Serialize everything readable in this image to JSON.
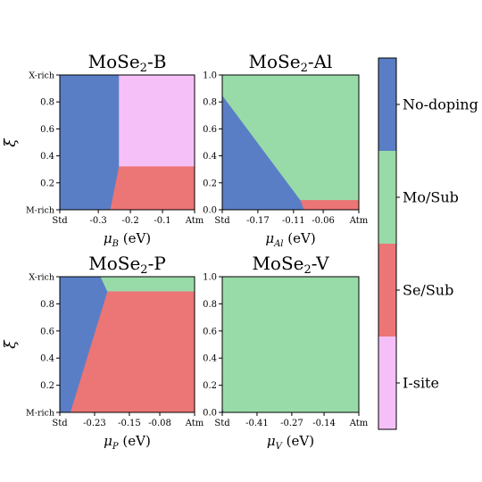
{
  "colors": {
    "No-doping": "#5A7EC5",
    "Mo/Sub": "#98DBA8",
    "Se/Sub": "#EC7575",
    "I-site": "#F5C0F7"
  },
  "colorbar": {
    "labels": [
      "No-doping",
      "Mo/Sub",
      "Se/Sub",
      "I-site"
    ]
  },
  "ylabel": "ξ",
  "chart_data": [
    {
      "type": "heatmap",
      "title": {
        "pre": "MoSe",
        "sub": "2",
        "post": "-B"
      },
      "xlabel": {
        "sym": "μ",
        "sub": "B",
        "unit": " (eV)"
      },
      "xlim": [
        -0.42,
        0.0
      ],
      "ylim": [
        0.0,
        1.0
      ],
      "xticks": [
        -0.42,
        -0.3,
        -0.2,
        -0.1,
        0.0
      ],
      "xtick_labels": [
        "Std",
        "-0.3",
        "-0.2",
        "-0.1",
        "Atm"
      ],
      "yticks": [
        0.0,
        0.2,
        0.4,
        0.6,
        0.8,
        1.0
      ],
      "ytick_labels": [
        "M-rich",
        "0.2",
        "0.4",
        "0.6",
        "0.8",
        "X-rich"
      ],
      "regions": [
        {
          "label": "No-doping",
          "polygon": [
            [
              -0.42,
              0.0
            ],
            [
              -0.262,
              0.0
            ],
            [
              -0.235,
              0.32
            ],
            [
              -0.235,
              1.0
            ],
            [
              -0.42,
              1.0
            ]
          ]
        },
        {
          "label": "I-site",
          "polygon": [
            [
              -0.235,
              0.32
            ],
            [
              0.0,
              0.32
            ],
            [
              0.0,
              1.0
            ],
            [
              -0.235,
              1.0
            ]
          ]
        },
        {
          "label": "Se/Sub",
          "polygon": [
            [
              -0.262,
              0.0
            ],
            [
              0.0,
              0.0
            ],
            [
              0.0,
              0.32
            ],
            [
              -0.235,
              0.32
            ]
          ]
        }
      ]
    },
    {
      "type": "heatmap",
      "title": {
        "pre": "MoSe",
        "sub": "2",
        "post": "-Al"
      },
      "xlabel": {
        "sym": "μ",
        "sub": "Al",
        "unit": " (eV)"
      },
      "xlim": [
        -0.23,
        0.0
      ],
      "ylim": [
        0.0,
        1.0
      ],
      "xticks": [
        -0.23,
        -0.17,
        -0.11,
        -0.06,
        0.0
      ],
      "xtick_labels": [
        "Std",
        "-0.17",
        "-0.11",
        "-0.06",
        "Atm"
      ],
      "yticks": [
        0.0,
        0.2,
        0.4,
        0.6,
        0.8,
        1.0
      ],
      "ytick_labels": [
        "0.0",
        "0.2",
        "0.4",
        "0.6",
        "0.8",
        "1.0"
      ],
      "regions": [
        {
          "label": "No-doping",
          "polygon": [
            [
              -0.23,
              0.0
            ],
            [
              -0.23,
              0.85
            ],
            [
              -0.098,
              0.07
            ],
            [
              -0.092,
              0.0
            ]
          ]
        },
        {
          "label": "Mo/Sub",
          "polygon": [
            [
              -0.23,
              0.85
            ],
            [
              -0.23,
              1.0
            ],
            [
              0.0,
              1.0
            ],
            [
              0.0,
              0.07
            ],
            [
              -0.098,
              0.07
            ]
          ]
        },
        {
          "label": "Se/Sub",
          "polygon": [
            [
              -0.092,
              0.0
            ],
            [
              -0.098,
              0.07
            ],
            [
              0.0,
              0.07
            ],
            [
              0.0,
              0.0
            ]
          ]
        }
      ]
    },
    {
      "type": "heatmap",
      "title": {
        "pre": "MoSe",
        "sub": "2",
        "post": "-P"
      },
      "xlabel": {
        "sym": "μ",
        "sub": "P",
        "unit": " (eV)"
      },
      "xlim": [
        -0.31,
        0.0
      ],
      "ylim": [
        0.0,
        1.0
      ],
      "xticks": [
        -0.31,
        -0.23,
        -0.15,
        -0.08,
        0.0
      ],
      "xtick_labels": [
        "Std",
        "-0.23",
        "-0.15",
        "-0.08",
        "Atm"
      ],
      "yticks": [
        0.0,
        0.2,
        0.4,
        0.6,
        0.8,
        1.0
      ],
      "ytick_labels": [
        "M-rich",
        "0.2",
        "0.4",
        "0.6",
        "0.8",
        "X-rich"
      ],
      "regions": [
        {
          "label": "No-doping",
          "polygon": [
            [
              -0.31,
              0.0
            ],
            [
              -0.285,
              0.0
            ],
            [
              -0.2,
              0.89
            ],
            [
              -0.216,
              1.0
            ],
            [
              -0.31,
              1.0
            ]
          ]
        },
        {
          "label": "Mo/Sub",
          "polygon": [
            [
              -0.216,
              1.0
            ],
            [
              0.0,
              1.0
            ],
            [
              0.0,
              0.89
            ],
            [
              -0.2,
              0.89
            ]
          ]
        },
        {
          "label": "Se/Sub",
          "polygon": [
            [
              -0.285,
              0.0
            ],
            [
              0.0,
              0.0
            ],
            [
              0.0,
              0.89
            ],
            [
              -0.2,
              0.89
            ]
          ]
        }
      ]
    },
    {
      "type": "heatmap",
      "title": {
        "pre": "MoSe",
        "sub": "2",
        "post": "-V"
      },
      "xlabel": {
        "sym": "μ",
        "sub": "V",
        "unit": " (eV)"
      },
      "xlim": [
        -0.55,
        0.0
      ],
      "ylim": [
        0.0,
        1.0
      ],
      "xticks": [
        -0.55,
        -0.41,
        -0.27,
        -0.14,
        0.0
      ],
      "xtick_labels": [
        "Std",
        "-0.41",
        "-0.27",
        "-0.14",
        "Atm"
      ],
      "yticks": [
        0.0,
        0.2,
        0.4,
        0.6,
        0.8,
        1.0
      ],
      "ytick_labels": [
        "0.0",
        "0.2",
        "0.4",
        "0.6",
        "0.8",
        "1.0"
      ],
      "regions": [
        {
          "label": "Mo/Sub",
          "polygon": [
            [
              -0.55,
              0.0
            ],
            [
              -0.55,
              1.0
            ],
            [
              0.0,
              1.0
            ],
            [
              0.0,
              0.0
            ]
          ]
        },
        {
          "label": "No-doping",
          "polygon": [
            [
              -0.55,
              0.0
            ],
            [
              -0.55,
              0.03
            ],
            [
              -0.545,
              0.0
            ]
          ]
        }
      ]
    }
  ]
}
